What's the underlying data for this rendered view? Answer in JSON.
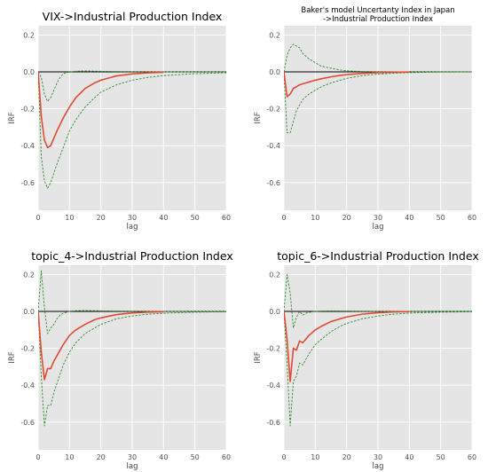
{
  "chart_data": [
    {
      "type": "line",
      "title": "VIX->Industrial Production Index",
      "xlabel": "lag",
      "ylabel": "IRF",
      "xlim": [
        0,
        60
      ],
      "ylim": [
        -0.75,
        0.25
      ],
      "xticks": [
        0,
        10,
        20,
        30,
        40,
        50,
        60
      ],
      "yticks": [
        -0.6,
        -0.4,
        -0.2,
        0.0,
        0.2
      ],
      "grid": true,
      "series": [
        {
          "role": "irf",
          "color": "#e24a33",
          "style": "solid",
          "x": [
            0,
            1,
            2,
            3,
            4,
            5,
            6,
            8,
            10,
            12,
            15,
            18,
            20,
            25,
            30,
            35,
            40
          ],
          "y": [
            0,
            -0.24,
            -0.37,
            -0.41,
            -0.4,
            -0.36,
            -0.32,
            -0.25,
            -0.19,
            -0.14,
            -0.09,
            -0.06,
            -0.045,
            -0.022,
            -0.011,
            -0.005,
            -0.002
          ]
        },
        {
          "role": "upper",
          "color": "#2e8b2e",
          "style": "dashed",
          "x": [
            0,
            1,
            2,
            3,
            4,
            5,
            6,
            7,
            8,
            10,
            12,
            14,
            16,
            18,
            20,
            25,
            30,
            40,
            50,
            60
          ],
          "y": [
            0,
            -0.03,
            -0.12,
            -0.16,
            -0.14,
            -0.1,
            -0.06,
            -0.03,
            -0.01,
            0.0,
            0.003,
            0.005,
            0.005,
            0.004,
            0.003,
            0.002,
            0.001,
            0.0,
            0.0,
            0.0
          ]
        },
        {
          "role": "lower",
          "color": "#2e8b2e",
          "style": "dashed",
          "x": [
            0,
            1,
            2,
            3,
            4,
            5,
            6,
            8,
            10,
            12,
            15,
            18,
            20,
            25,
            30,
            35,
            40,
            50,
            60
          ],
          "y": [
            0,
            -0.46,
            -0.59,
            -0.63,
            -0.6,
            -0.55,
            -0.5,
            -0.41,
            -0.32,
            -0.26,
            -0.19,
            -0.14,
            -0.11,
            -0.07,
            -0.045,
            -0.03,
            -0.02,
            -0.01,
            -0.005
          ]
        }
      ]
    },
    {
      "type": "line",
      "title": "Baker's model Uncertanty Index in Japan",
      "title_line2": "->Industrial Production Index",
      "xlabel": "lag",
      "ylabel": "IRF",
      "xlim": [
        0,
        60
      ],
      "ylim": [
        -0.75,
        0.25
      ],
      "xticks": [
        0,
        10,
        20,
        30,
        40,
        50,
        60
      ],
      "yticks": [
        -0.6,
        -0.4,
        -0.2,
        0.0,
        0.2
      ],
      "grid": true,
      "series": [
        {
          "role": "irf",
          "color": "#e24a33",
          "style": "solid",
          "x": [
            0,
            1,
            2,
            3,
            4,
            5,
            6,
            8,
            10,
            12,
            15,
            18,
            20,
            25,
            30,
            35,
            40
          ],
          "y": [
            0,
            -0.135,
            -0.12,
            -0.09,
            -0.08,
            -0.07,
            -0.065,
            -0.055,
            -0.045,
            -0.037,
            -0.027,
            -0.019,
            -0.015,
            -0.008,
            -0.004,
            -0.002,
            -0.001
          ]
        },
        {
          "role": "upper",
          "color": "#2e8b2e",
          "style": "dashed",
          "x": [
            0,
            1,
            2,
            3,
            4,
            5,
            6,
            8,
            10,
            12,
            15,
            18,
            20,
            25,
            30,
            40,
            50,
            60
          ],
          "y": [
            0,
            0.09,
            0.13,
            0.15,
            0.14,
            0.13,
            0.1,
            0.07,
            0.05,
            0.03,
            0.02,
            0.01,
            0.006,
            0.002,
            0.0,
            0.0,
            0.0,
            0.0
          ]
        },
        {
          "role": "lower",
          "color": "#2e8b2e",
          "style": "dashed",
          "x": [
            0,
            1,
            2,
            3,
            4,
            5,
            6,
            8,
            10,
            12,
            15,
            18,
            20,
            25,
            30,
            35,
            40,
            50,
            60
          ],
          "y": [
            0,
            -0.33,
            -0.33,
            -0.27,
            -0.21,
            -0.18,
            -0.15,
            -0.12,
            -0.1,
            -0.08,
            -0.06,
            -0.045,
            -0.035,
            -0.02,
            -0.012,
            -0.007,
            -0.004,
            -0.001,
            0.0
          ]
        }
      ]
    },
    {
      "type": "line",
      "title": "topic_4->Industrial Production Index",
      "xlabel": "lag",
      "ylabel": "IRF",
      "xlim": [
        0,
        60
      ],
      "ylim": [
        -0.75,
        0.25
      ],
      "xticks": [
        0,
        10,
        20,
        30,
        40,
        50,
        60
      ],
      "yticks": [
        -0.6,
        -0.4,
        -0.2,
        0.0,
        0.2
      ],
      "grid": true,
      "series": [
        {
          "role": "irf",
          "color": "#e24a33",
          "style": "solid",
          "x": [
            0,
            1,
            2,
            3,
            4,
            5,
            6,
            8,
            10,
            12,
            15,
            18,
            20,
            25,
            30,
            35,
            40
          ],
          "y": [
            0,
            -0.22,
            -0.37,
            -0.31,
            -0.31,
            -0.27,
            -0.24,
            -0.18,
            -0.13,
            -0.1,
            -0.07,
            -0.045,
            -0.035,
            -0.017,
            -0.008,
            -0.004,
            -0.002
          ]
        },
        {
          "role": "upper",
          "color": "#2e8b2e",
          "style": "dashed",
          "x": [
            0,
            1,
            2,
            3,
            4,
            5,
            6,
            7,
            8,
            10,
            12,
            15,
            18,
            20,
            25,
            30,
            40,
            50,
            60
          ],
          "y": [
            0,
            0.22,
            0.02,
            -0.12,
            -0.09,
            -0.07,
            -0.04,
            -0.02,
            -0.01,
            0.0,
            0.004,
            0.005,
            0.004,
            0.003,
            0.002,
            0.001,
            0.0,
            0.0,
            0.0
          ]
        },
        {
          "role": "lower",
          "color": "#2e8b2e",
          "style": "dashed",
          "x": [
            0,
            1,
            2,
            3,
            4,
            5,
            6,
            8,
            10,
            12,
            15,
            18,
            20,
            25,
            30,
            35,
            40,
            50,
            60
          ],
          "y": [
            0,
            -0.35,
            -0.62,
            -0.51,
            -0.51,
            -0.44,
            -0.39,
            -0.29,
            -0.22,
            -0.17,
            -0.12,
            -0.09,
            -0.07,
            -0.04,
            -0.025,
            -0.015,
            -0.01,
            -0.004,
            -0.002
          ]
        }
      ]
    },
    {
      "type": "line",
      "title": "topic_6->Industrial Production Index",
      "xlabel": "lag",
      "ylabel": "IRF",
      "xlim": [
        0,
        60
      ],
      "ylim": [
        -0.75,
        0.25
      ],
      "xticks": [
        0,
        10,
        20,
        30,
        40,
        50,
        60
      ],
      "yticks": [
        -0.6,
        -0.4,
        -0.2,
        0.0,
        0.2
      ],
      "grid": true,
      "series": [
        {
          "role": "irf",
          "color": "#e24a33",
          "style": "solid",
          "x": [
            0,
            1,
            2,
            3,
            4,
            5,
            6,
            7,
            8,
            10,
            12,
            15,
            18,
            20,
            25,
            30,
            35,
            40
          ],
          "y": [
            0,
            -0.15,
            -0.38,
            -0.2,
            -0.21,
            -0.16,
            -0.17,
            -0.15,
            -0.13,
            -0.1,
            -0.08,
            -0.055,
            -0.04,
            -0.03,
            -0.015,
            -0.007,
            -0.003,
            -0.001
          ]
        },
        {
          "role": "upper",
          "color": "#2e8b2e",
          "style": "dashed",
          "x": [
            0,
            1,
            2,
            3,
            4,
            5,
            6,
            7,
            8,
            10,
            12,
            15,
            20,
            30,
            40,
            50,
            60
          ],
          "y": [
            0,
            0.2,
            0.1,
            -0.09,
            -0.03,
            0.0,
            -0.02,
            -0.01,
            -0.005,
            0.0,
            0.002,
            0.003,
            0.002,
            0.0,
            0.0,
            0.0,
            0.0
          ]
        },
        {
          "role": "lower",
          "color": "#2e8b2e",
          "style": "dashed",
          "x": [
            0,
            1,
            2,
            3,
            4,
            5,
            6,
            7,
            8,
            10,
            12,
            15,
            18,
            20,
            25,
            30,
            35,
            40,
            50,
            60
          ],
          "y": [
            0,
            -0.28,
            -0.62,
            -0.38,
            -0.35,
            -0.28,
            -0.29,
            -0.26,
            -0.23,
            -0.18,
            -0.15,
            -0.11,
            -0.08,
            -0.065,
            -0.04,
            -0.025,
            -0.015,
            -0.009,
            -0.004,
            -0.002
          ]
        }
      ]
    }
  ]
}
